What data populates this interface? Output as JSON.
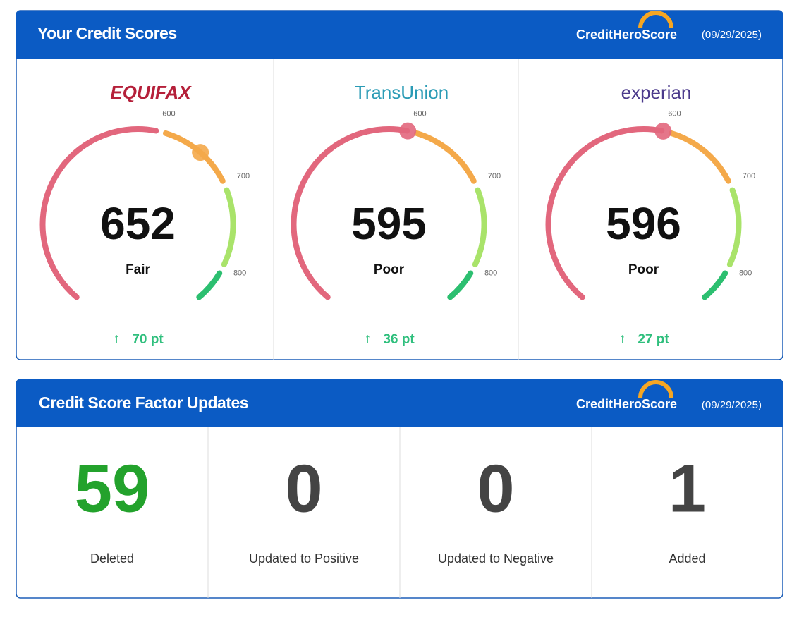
{
  "scores_card": {
    "title": "Your Credit Scores",
    "brand": "CreditHeroScore",
    "date": "(09/29/2025)",
    "ticks": [
      600,
      700,
      800
    ],
    "bureaus": [
      {
        "name": "EQUIFAX",
        "score": 652,
        "rating": "Fair",
        "change": "70 pt"
      },
      {
        "name": "TransUnion",
        "score": 595,
        "rating": "Poor",
        "change": "36 pt"
      },
      {
        "name": "experian",
        "score": 596,
        "rating": "Poor",
        "change": "27 pt"
      }
    ]
  },
  "factors_card": {
    "title": "Credit Score Factor Updates",
    "brand": "CreditHeroScore",
    "date": "(09/29/2025)",
    "items": [
      {
        "value": 59,
        "label": "Deleted"
      },
      {
        "value": 0,
        "label": "Updated to Positive"
      },
      {
        "value": 0,
        "label": "Updated to Negative"
      },
      {
        "value": 1,
        "label": "Added"
      }
    ]
  }
}
